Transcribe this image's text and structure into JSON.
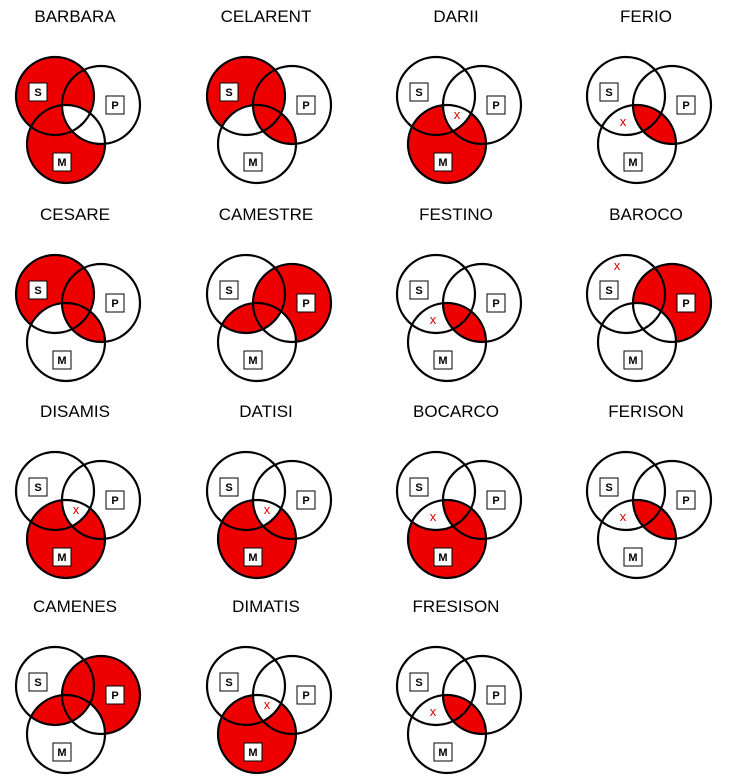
{
  "shade_color": "#ee0000",
  "x_color": "#dd0000",
  "mark_symbol": "x",
  "set_labels": {
    "s": "S",
    "p": "P",
    "m": "M"
  },
  "diagrams": [
    {
      "title": "BARBARA",
      "shade": [
        "s_only",
        "sm_not_p",
        "m_only",
        "sp_not_m"
      ],
      "x": null
    },
    {
      "title": "CELARENT",
      "shade": [
        "s_only",
        "sp_not_m",
        "pm_not_s",
        "spm"
      ],
      "x": null
    },
    {
      "title": "DARII",
      "shade": [
        "sm_not_p",
        "pm_not_s",
        "m_only"
      ],
      "x": "spm"
    },
    {
      "title": "FERIO",
      "shade": [
        "spm",
        "pm_not_s"
      ],
      "x": "sm_not_p"
    },
    {
      "title": "CESARE",
      "shade": [
        "s_only",
        "sp_not_m",
        "pm_not_s",
        "spm"
      ],
      "x": null
    },
    {
      "title": "CAMESTRE",
      "shade": [
        "sp_not_m",
        "spm",
        "p_only",
        "sm_not_p"
      ],
      "x": null
    },
    {
      "title": "FESTINO",
      "shade": [
        "spm",
        "pm_not_s"
      ],
      "x": "sm_not_p"
    },
    {
      "title": "BAROCO",
      "shade": [
        "p_only",
        "sp_not_m"
      ],
      "x": "s_only"
    },
    {
      "title": "DISAMIS",
      "shade": [
        "sm_not_p",
        "m_only",
        "pm_not_s"
      ],
      "x": "spm"
    },
    {
      "title": "DATISI",
      "shade": [
        "sm_not_p",
        "m_only",
        "pm_not_s"
      ],
      "x": "spm"
    },
    {
      "title": "BOCARCO",
      "shade": [
        "spm",
        "pm_not_s",
        "m_only"
      ],
      "x": "sm_not_p"
    },
    {
      "title": "FERISON",
      "shade": [
        "spm",
        "pm_not_s"
      ],
      "x": "sm_not_p"
    },
    {
      "title": "CAMENES",
      "shade": [
        "sp_not_m",
        "spm",
        "p_only",
        "sm_not_p"
      ],
      "x": null
    },
    {
      "title": "DIMATIS",
      "shade": [
        "sm_not_p",
        "m_only",
        "pm_not_s"
      ],
      "x": "spm"
    },
    {
      "title": "FRESISON",
      "shade": [
        "spm",
        "pm_not_s"
      ],
      "x": "sm_not_p"
    }
  ]
}
